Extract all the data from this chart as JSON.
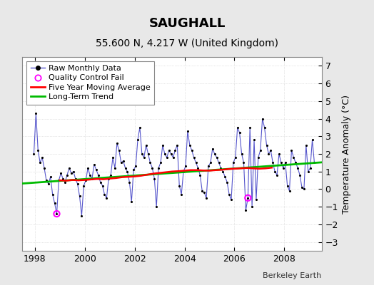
{
  "title": "SAUGHALL",
  "subtitle": "55.600 N, 4.217 W (United Kingdom)",
  "ylabel": "Temperature Anomaly (°C)",
  "credit": "Berkeley Earth",
  "xlim": [
    1997.5,
    2009.5
  ],
  "ylim": [
    -3.5,
    7.5
  ],
  "yticks": [
    -3,
    -2,
    -1,
    0,
    1,
    2,
    3,
    4,
    5,
    6,
    7
  ],
  "xticks": [
    1998,
    2000,
    2002,
    2004,
    2006,
    2008
  ],
  "bg_color": "#e8e8e8",
  "plot_bg_color": "#ffffff",
  "raw_color": "#5555cc",
  "dot_color": "#000000",
  "moving_avg_color": "#ff0000",
  "trend_color": "#00bb00",
  "qc_fail_color": "#ff00ff",
  "raw_data": {
    "x": [
      1997.958,
      1998.042,
      1998.125,
      1998.208,
      1998.292,
      1998.375,
      1998.458,
      1998.542,
      1998.625,
      1998.708,
      1998.792,
      1998.875,
      1998.958,
      1999.042,
      1999.125,
      1999.208,
      1999.292,
      1999.375,
      1999.458,
      1999.542,
      1999.625,
      1999.708,
      1999.792,
      1999.875,
      1999.958,
      2000.042,
      2000.125,
      2000.208,
      2000.292,
      2000.375,
      2000.458,
      2000.542,
      2000.625,
      2000.708,
      2000.792,
      2000.875,
      2000.958,
      2001.042,
      2001.125,
      2001.208,
      2001.292,
      2001.375,
      2001.458,
      2001.542,
      2001.625,
      2001.708,
      2001.792,
      2001.875,
      2001.958,
      2002.042,
      2002.125,
      2002.208,
      2002.292,
      2002.375,
      2002.458,
      2002.542,
      2002.625,
      2002.708,
      2002.792,
      2002.875,
      2002.958,
      2003.042,
      2003.125,
      2003.208,
      2003.292,
      2003.375,
      2003.458,
      2003.542,
      2003.625,
      2003.708,
      2003.792,
      2003.875,
      2003.958,
      2004.042,
      2004.125,
      2004.208,
      2004.292,
      2004.375,
      2004.458,
      2004.542,
      2004.625,
      2004.708,
      2004.792,
      2004.875,
      2004.958,
      2005.042,
      2005.125,
      2005.208,
      2005.292,
      2005.375,
      2005.458,
      2005.542,
      2005.625,
      2005.708,
      2005.792,
      2005.875,
      2005.958,
      2006.042,
      2006.125,
      2006.208,
      2006.292,
      2006.375,
      2006.458,
      2006.542,
      2006.625,
      2006.708,
      2006.792,
      2006.875,
      2006.958,
      2007.042,
      2007.125,
      2007.208,
      2007.292,
      2007.375,
      2007.458,
      2007.542,
      2007.625,
      2007.708,
      2007.792,
      2007.875,
      2007.958,
      2008.042,
      2008.125,
      2008.208,
      2008.292,
      2008.375,
      2008.458,
      2008.542,
      2008.625,
      2008.708,
      2008.792,
      2008.875,
      2008.958,
      2009.042,
      2009.125,
      2009.208
    ],
    "y": [
      2.0,
      4.3,
      2.2,
      1.5,
      1.8,
      1.2,
      0.5,
      0.3,
      0.7,
      -0.3,
      -0.8,
      -1.4,
      0.5,
      0.9,
      0.6,
      0.4,
      0.8,
      1.2,
      0.9,
      1.0,
      0.6,
      0.3,
      -0.4,
      -1.5,
      0.2,
      0.5,
      1.2,
      0.8,
      0.6,
      1.4,
      1.1,
      0.8,
      0.4,
      0.2,
      -0.3,
      -0.5,
      0.6,
      0.8,
      1.8,
      1.2,
      2.6,
      2.2,
      1.5,
      1.6,
      1.2,
      1.0,
      0.4,
      -0.7,
      1.1,
      1.3,
      2.8,
      3.5,
      2.0,
      1.8,
      2.5,
      2.0,
      1.5,
      1.2,
      0.6,
      -1.0,
      1.2,
      1.5,
      2.5,
      2.0,
      1.8,
      2.2,
      2.0,
      1.8,
      2.2,
      2.5,
      0.2,
      -0.3,
      1.0,
      1.3,
      3.3,
      2.5,
      2.2,
      1.8,
      1.5,
      1.2,
      0.8,
      -0.1,
      -0.2,
      -0.5,
      1.3,
      1.5,
      2.3,
      2.0,
      1.8,
      1.5,
      1.2,
      1.0,
      0.7,
      0.4,
      -0.3,
      -0.6,
      1.5,
      1.8,
      3.5,
      3.2,
      2.0,
      1.5,
      -1.2,
      -0.5,
      3.5,
      -1.0,
      2.8,
      -0.6,
      1.8,
      2.2,
      4.0,
      3.5,
      2.5,
      2.0,
      2.2,
      1.5,
      1.0,
      0.8,
      2.0,
      1.5,
      1.2,
      1.5,
      0.2,
      -0.1,
      2.2,
      1.8,
      1.5,
      1.2,
      0.8,
      0.1,
      0.0,
      2.5,
      1.0,
      1.2,
      2.8,
      1.5
    ]
  },
  "qc_fail_points": {
    "x": [
      1998.875,
      2006.542
    ],
    "y": [
      -1.4,
      -0.5
    ]
  },
  "moving_avg": {
    "x": [
      1999.0,
      1999.25,
      1999.5,
      1999.75,
      2000.0,
      2000.25,
      2000.5,
      2000.75,
      2001.0,
      2001.25,
      2001.5,
      2001.75,
      2002.0,
      2002.25,
      2002.5,
      2002.75,
      2003.0,
      2003.25,
      2003.5,
      2003.75,
      2004.0,
      2004.25,
      2004.5,
      2004.75,
      2005.0,
      2005.25,
      2005.5,
      2005.75,
      2006.0,
      2006.25,
      2006.5,
      2006.75,
      2007.0,
      2007.25,
      2007.5
    ],
    "y": [
      0.5,
      0.48,
      0.52,
      0.5,
      0.52,
      0.55,
      0.58,
      0.56,
      0.6,
      0.63,
      0.68,
      0.7,
      0.72,
      0.76,
      0.82,
      0.88,
      0.92,
      0.96,
      1.0,
      1.02,
      1.05,
      1.08,
      1.08,
      1.06,
      1.05,
      1.08,
      1.1,
      1.14,
      1.16,
      1.18,
      1.2,
      1.18,
      1.16,
      1.18,
      1.22
    ]
  },
  "trend": {
    "x": [
      1997.5,
      2009.5
    ],
    "y": [
      0.32,
      1.52
    ]
  },
  "title_fontsize": 13,
  "subtitle_fontsize": 10,
  "tick_fontsize": 9,
  "ylabel_fontsize": 9,
  "legend_fontsize": 8,
  "credit_fontsize": 8
}
